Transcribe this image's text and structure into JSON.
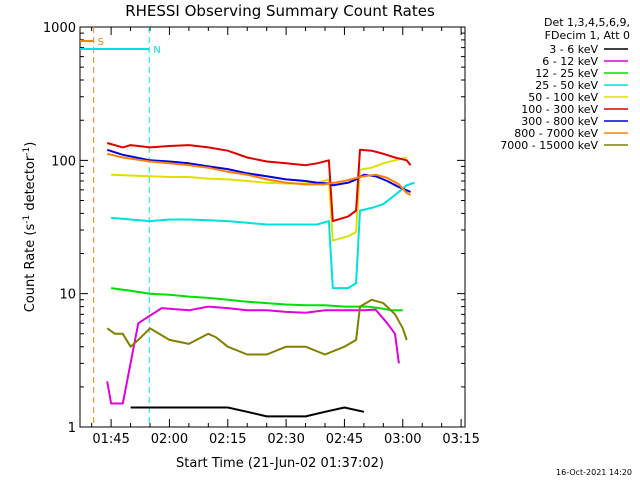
{
  "chart_data": {
    "type": "line",
    "title": "RHESSI Observing Summary Count Rates",
    "xlabel": "Start Time (21-Jun-02 01:37:02)",
    "ylabel_main": "Count Rate (s",
    "ylabel_sup1": "-1",
    "ylabel_mid": " detector",
    "ylabel_sup2": "-1",
    "ylabel_end": ")",
    "yscale": "log",
    "ylim": [
      1,
      1000
    ],
    "xlim_minutes": [
      97,
      196
    ],
    "x_ticks": [
      {
        "m": 105,
        "label": "01:45"
      },
      {
        "m": 120,
        "label": "02:00"
      },
      {
        "m": 135,
        "label": "02:15"
      },
      {
        "m": 150,
        "label": "02:30"
      },
      {
        "m": 165,
        "label": "02:45"
      },
      {
        "m": 180,
        "label": "03:00"
      },
      {
        "m": 195,
        "label": "03:15"
      }
    ],
    "y_ticks": [
      {
        "v": 1,
        "label": "1"
      },
      {
        "v": 10,
        "label": "10"
      },
      {
        "v": 100,
        "label": "100"
      },
      {
        "v": 1000,
        "label": "1000"
      }
    ],
    "legend_header": [
      "Det 1,3,4,5,6,9,",
      "FDecim 1, Att 0"
    ],
    "series": [
      {
        "name": "3 - 6 keV",
        "color": "#000000",
        "points": [
          [
            110,
            1.4
          ],
          [
            115,
            1.4
          ],
          [
            120,
            1.4
          ],
          [
            125,
            1.4
          ],
          [
            130,
            1.4
          ],
          [
            135,
            1.4
          ],
          [
            140,
            1.3
          ],
          [
            145,
            1.2
          ],
          [
            150,
            1.2
          ],
          [
            155,
            1.2
          ],
          [
            160,
            1.3
          ],
          [
            165,
            1.4
          ],
          [
            170,
            1.3
          ]
        ]
      },
      {
        "name": "6 - 12 keV",
        "color": "#e000e0",
        "points": [
          [
            104,
            2.2
          ],
          [
            105,
            1.5
          ],
          [
            106,
            1.5
          ],
          [
            108,
            1.5
          ],
          [
            112,
            6
          ],
          [
            118,
            7.8
          ],
          [
            125,
            7.5
          ],
          [
            130,
            8
          ],
          [
            135,
            7.8
          ],
          [
            140,
            7.5
          ],
          [
            145,
            7.5
          ],
          [
            150,
            7.3
          ],
          [
            155,
            7.2
          ],
          [
            160,
            7.5
          ],
          [
            165,
            7.5
          ],
          [
            170,
            7.5
          ],
          [
            173,
            7.6
          ],
          [
            176,
            6
          ],
          [
            178,
            5
          ],
          [
            179,
            3
          ]
        ]
      },
      {
        "name": "12 - 25 keV",
        "color": "#00e000",
        "points": [
          [
            105,
            11
          ],
          [
            110,
            10.5
          ],
          [
            115,
            10
          ],
          [
            120,
            9.8
          ],
          [
            125,
            9.5
          ],
          [
            130,
            9.3
          ],
          [
            135,
            9
          ],
          [
            140,
            8.7
          ],
          [
            145,
            8.5
          ],
          [
            150,
            8.3
          ],
          [
            155,
            8.2
          ],
          [
            160,
            8.2
          ],
          [
            165,
            8
          ],
          [
            168,
            8
          ],
          [
            171,
            8
          ],
          [
            174,
            7.8
          ],
          [
            177,
            7.5
          ],
          [
            180,
            7.5
          ]
        ]
      },
      {
        "name": "25 - 50 keV",
        "color": "#00e0e0",
        "points": [
          [
            105,
            37
          ],
          [
            110,
            36
          ],
          [
            115,
            35
          ],
          [
            120,
            36
          ],
          [
            125,
            36
          ],
          [
            130,
            35.5
          ],
          [
            135,
            35
          ],
          [
            140,
            34
          ],
          [
            145,
            33
          ],
          [
            150,
            33
          ],
          [
            155,
            33
          ],
          [
            158,
            33
          ],
          [
            161,
            35
          ],
          [
            162,
            11
          ],
          [
            166,
            11
          ],
          [
            168,
            12
          ],
          [
            169,
            42
          ],
          [
            172,
            44
          ],
          [
            175,
            47
          ],
          [
            178,
            55
          ],
          [
            181,
            65
          ],
          [
            183,
            68
          ]
        ]
      },
      {
        "name": "50 - 100 keV",
        "color": "#e0e000",
        "points": [
          [
            105,
            78
          ],
          [
            110,
            77
          ],
          [
            115,
            76
          ],
          [
            120,
            75
          ],
          [
            125,
            75
          ],
          [
            130,
            73
          ],
          [
            135,
            72
          ],
          [
            140,
            70
          ],
          [
            145,
            68
          ],
          [
            150,
            67
          ],
          [
            155,
            67
          ],
          [
            158,
            68
          ],
          [
            161,
            72
          ],
          [
            162,
            25
          ],
          [
            166,
            27
          ],
          [
            168,
            29
          ],
          [
            169,
            85
          ],
          [
            172,
            88
          ],
          [
            175,
            95
          ],
          [
            178,
            100
          ],
          [
            181,
            105
          ]
        ]
      },
      {
        "name": "100 - 300 keV",
        "color": "#e00000",
        "points": [
          [
            104,
            135
          ],
          [
            108,
            125
          ],
          [
            110,
            130
          ],
          [
            115,
            125
          ],
          [
            120,
            128
          ],
          [
            125,
            130
          ],
          [
            130,
            125
          ],
          [
            135,
            118
          ],
          [
            140,
            105
          ],
          [
            145,
            98
          ],
          [
            150,
            95
          ],
          [
            155,
            92
          ],
          [
            158,
            95
          ],
          [
            161,
            100
          ],
          [
            162,
            35
          ],
          [
            166,
            38
          ],
          [
            168,
            42
          ],
          [
            169,
            120
          ],
          [
            172,
            118
          ],
          [
            175,
            112
          ],
          [
            178,
            105
          ],
          [
            181,
            100
          ],
          [
            182,
            92
          ]
        ]
      },
      {
        "name": "300 - 800 keV",
        "color": "#0000e0",
        "points": [
          [
            104,
            120
          ],
          [
            108,
            110
          ],
          [
            115,
            100
          ],
          [
            120,
            98
          ],
          [
            125,
            95
          ],
          [
            130,
            90
          ],
          [
            135,
            86
          ],
          [
            140,
            80
          ],
          [
            145,
            76
          ],
          [
            150,
            72
          ],
          [
            155,
            70
          ],
          [
            158,
            68
          ],
          [
            161,
            67
          ],
          [
            162,
            65
          ],
          [
            166,
            68
          ],
          [
            168,
            72
          ],
          [
            170,
            78
          ],
          [
            173,
            76
          ],
          [
            176,
            70
          ],
          [
            179,
            63
          ],
          [
            182,
            58
          ]
        ]
      },
      {
        "name": "800 - 7000 keV",
        "color": "#ff8000",
        "points": [
          [
            104,
            112
          ],
          [
            108,
            105
          ],
          [
            115,
            98
          ],
          [
            120,
            95
          ],
          [
            125,
            92
          ],
          [
            130,
            88
          ],
          [
            135,
            82
          ],
          [
            140,
            78
          ],
          [
            145,
            72
          ],
          [
            150,
            68
          ],
          [
            155,
            66
          ],
          [
            160,
            66
          ],
          [
            165,
            70
          ],
          [
            170,
            76
          ],
          [
            173,
            78
          ],
          [
            176,
            74
          ],
          [
            179,
            66
          ],
          [
            181,
            57
          ],
          [
            182,
            55
          ]
        ]
      },
      {
        "name": "7000 - 15000 keV",
        "color": "#808000",
        "points": [
          [
            104,
            5.5
          ],
          [
            106,
            5
          ],
          [
            108,
            5
          ],
          [
            110,
            4
          ],
          [
            112,
            4.5
          ],
          [
            115,
            5.5
          ],
          [
            120,
            4.5
          ],
          [
            125,
            4.2
          ],
          [
            130,
            5
          ],
          [
            132,
            4.7
          ],
          [
            135,
            4
          ],
          [
            140,
            3.5
          ],
          [
            145,
            3.5
          ],
          [
            150,
            4
          ],
          [
            155,
            4
          ],
          [
            160,
            3.5
          ],
          [
            165,
            4
          ],
          [
            168,
            4.5
          ],
          [
            169,
            8
          ],
          [
            172,
            9
          ],
          [
            175,
            8.5
          ],
          [
            178,
            7
          ],
          [
            180,
            5.5
          ],
          [
            181,
            4.5
          ]
        ]
      }
    ],
    "markers": [
      {
        "label": "S",
        "color": "#ff8000",
        "m": 100.5,
        "bar_from": 97,
        "bar_to": 100.5
      },
      {
        "label": "N",
        "color": "#00e0e0",
        "m": 114.8,
        "bar_from": 97,
        "bar_to": 114.8
      }
    ],
    "footer_date": "16-Oct-2021 14:20"
  }
}
